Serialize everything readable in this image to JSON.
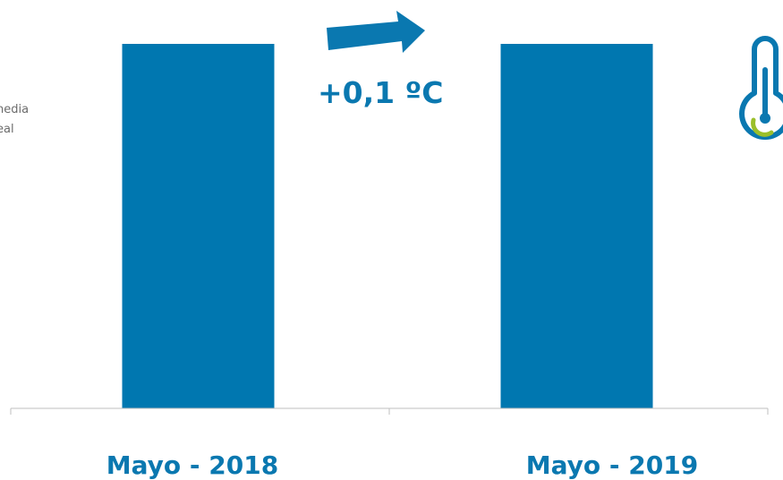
{
  "colors": {
    "bar": "#0077b0",
    "accent": "#0a78b0",
    "thermo_green": "#9bbf2a",
    "axis": "#bfbfbf",
    "side_text": "#6b6b6b"
  },
  "side_labels": [
    "nedia",
    "eal"
  ],
  "change_label": "+0,1 ºC",
  "icons": [
    "right-arrow-icon",
    "thermometer-icon"
  ],
  "chart_data": {
    "type": "bar",
    "categories": [
      "Mayo - 2018",
      "Mayo - 2019"
    ],
    "values": [
      1.0,
      1.0
    ],
    "ylim": [
      0,
      1.0
    ],
    "grid": false,
    "legend": "none"
  }
}
